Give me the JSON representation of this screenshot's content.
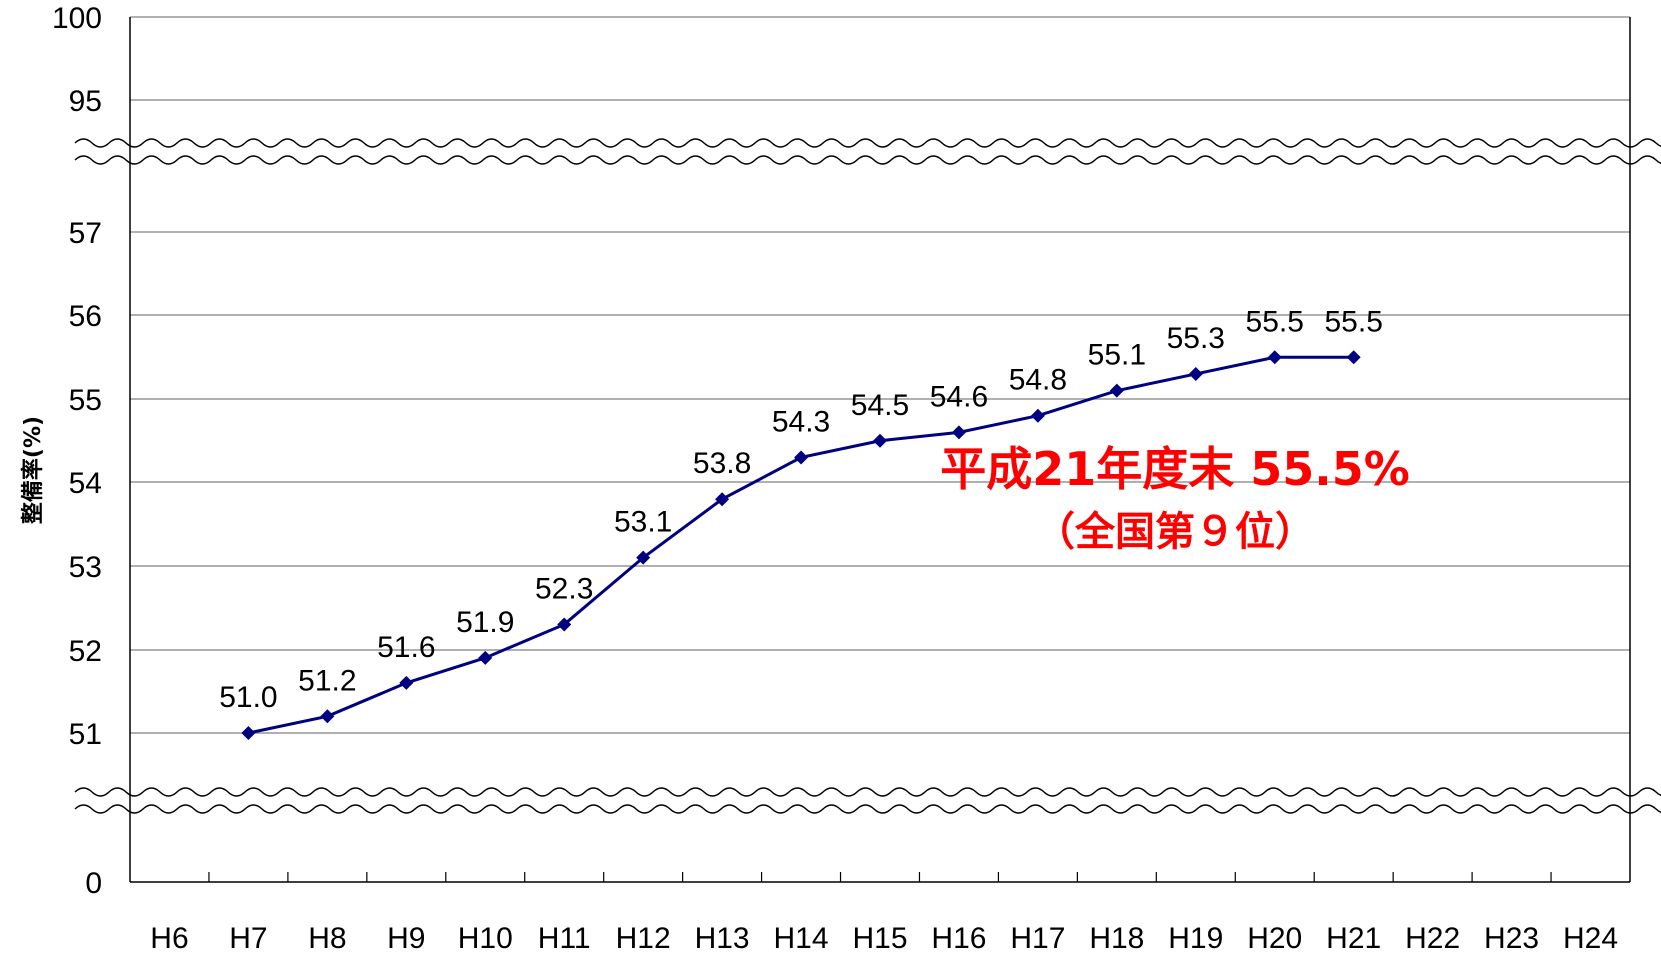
{
  "chart_data": {
    "type": "line",
    "ylabel": "整備率(%)",
    "y_ticks": [
      "100",
      "95",
      "57",
      "56",
      "55",
      "54",
      "53",
      "52",
      "51",
      "0"
    ],
    "y_axis_breaks": true,
    "categories": [
      "H6",
      "H7",
      "H8",
      "H9",
      "H10",
      "H11",
      "H12",
      "H13",
      "H14",
      "H15",
      "H16",
      "H17",
      "H18",
      "H19",
      "H20",
      "H21",
      "H22",
      "H23",
      "H24"
    ],
    "series": [
      {
        "values": [
          null,
          51.0,
          51.2,
          51.6,
          51.9,
          52.3,
          53.1,
          53.8,
          54.3,
          54.5,
          54.6,
          54.8,
          55.1,
          55.3,
          55.5,
          55.5,
          null,
          null,
          null
        ],
        "labels": [
          null,
          "51.0",
          "51.2",
          "51.6",
          "51.9",
          "52.3",
          "53.1",
          "53.8",
          "54.3",
          "54.5",
          "54.6",
          "54.8",
          "55.1",
          "55.3",
          "55.5",
          "55.5",
          null,
          null,
          null
        ],
        "color": "#000080"
      }
    ],
    "grid": true,
    "annotation": {
      "line1": "平成21年度末 55.5%",
      "line2": "（全国第９位）",
      "color": "#ff0000"
    }
  }
}
